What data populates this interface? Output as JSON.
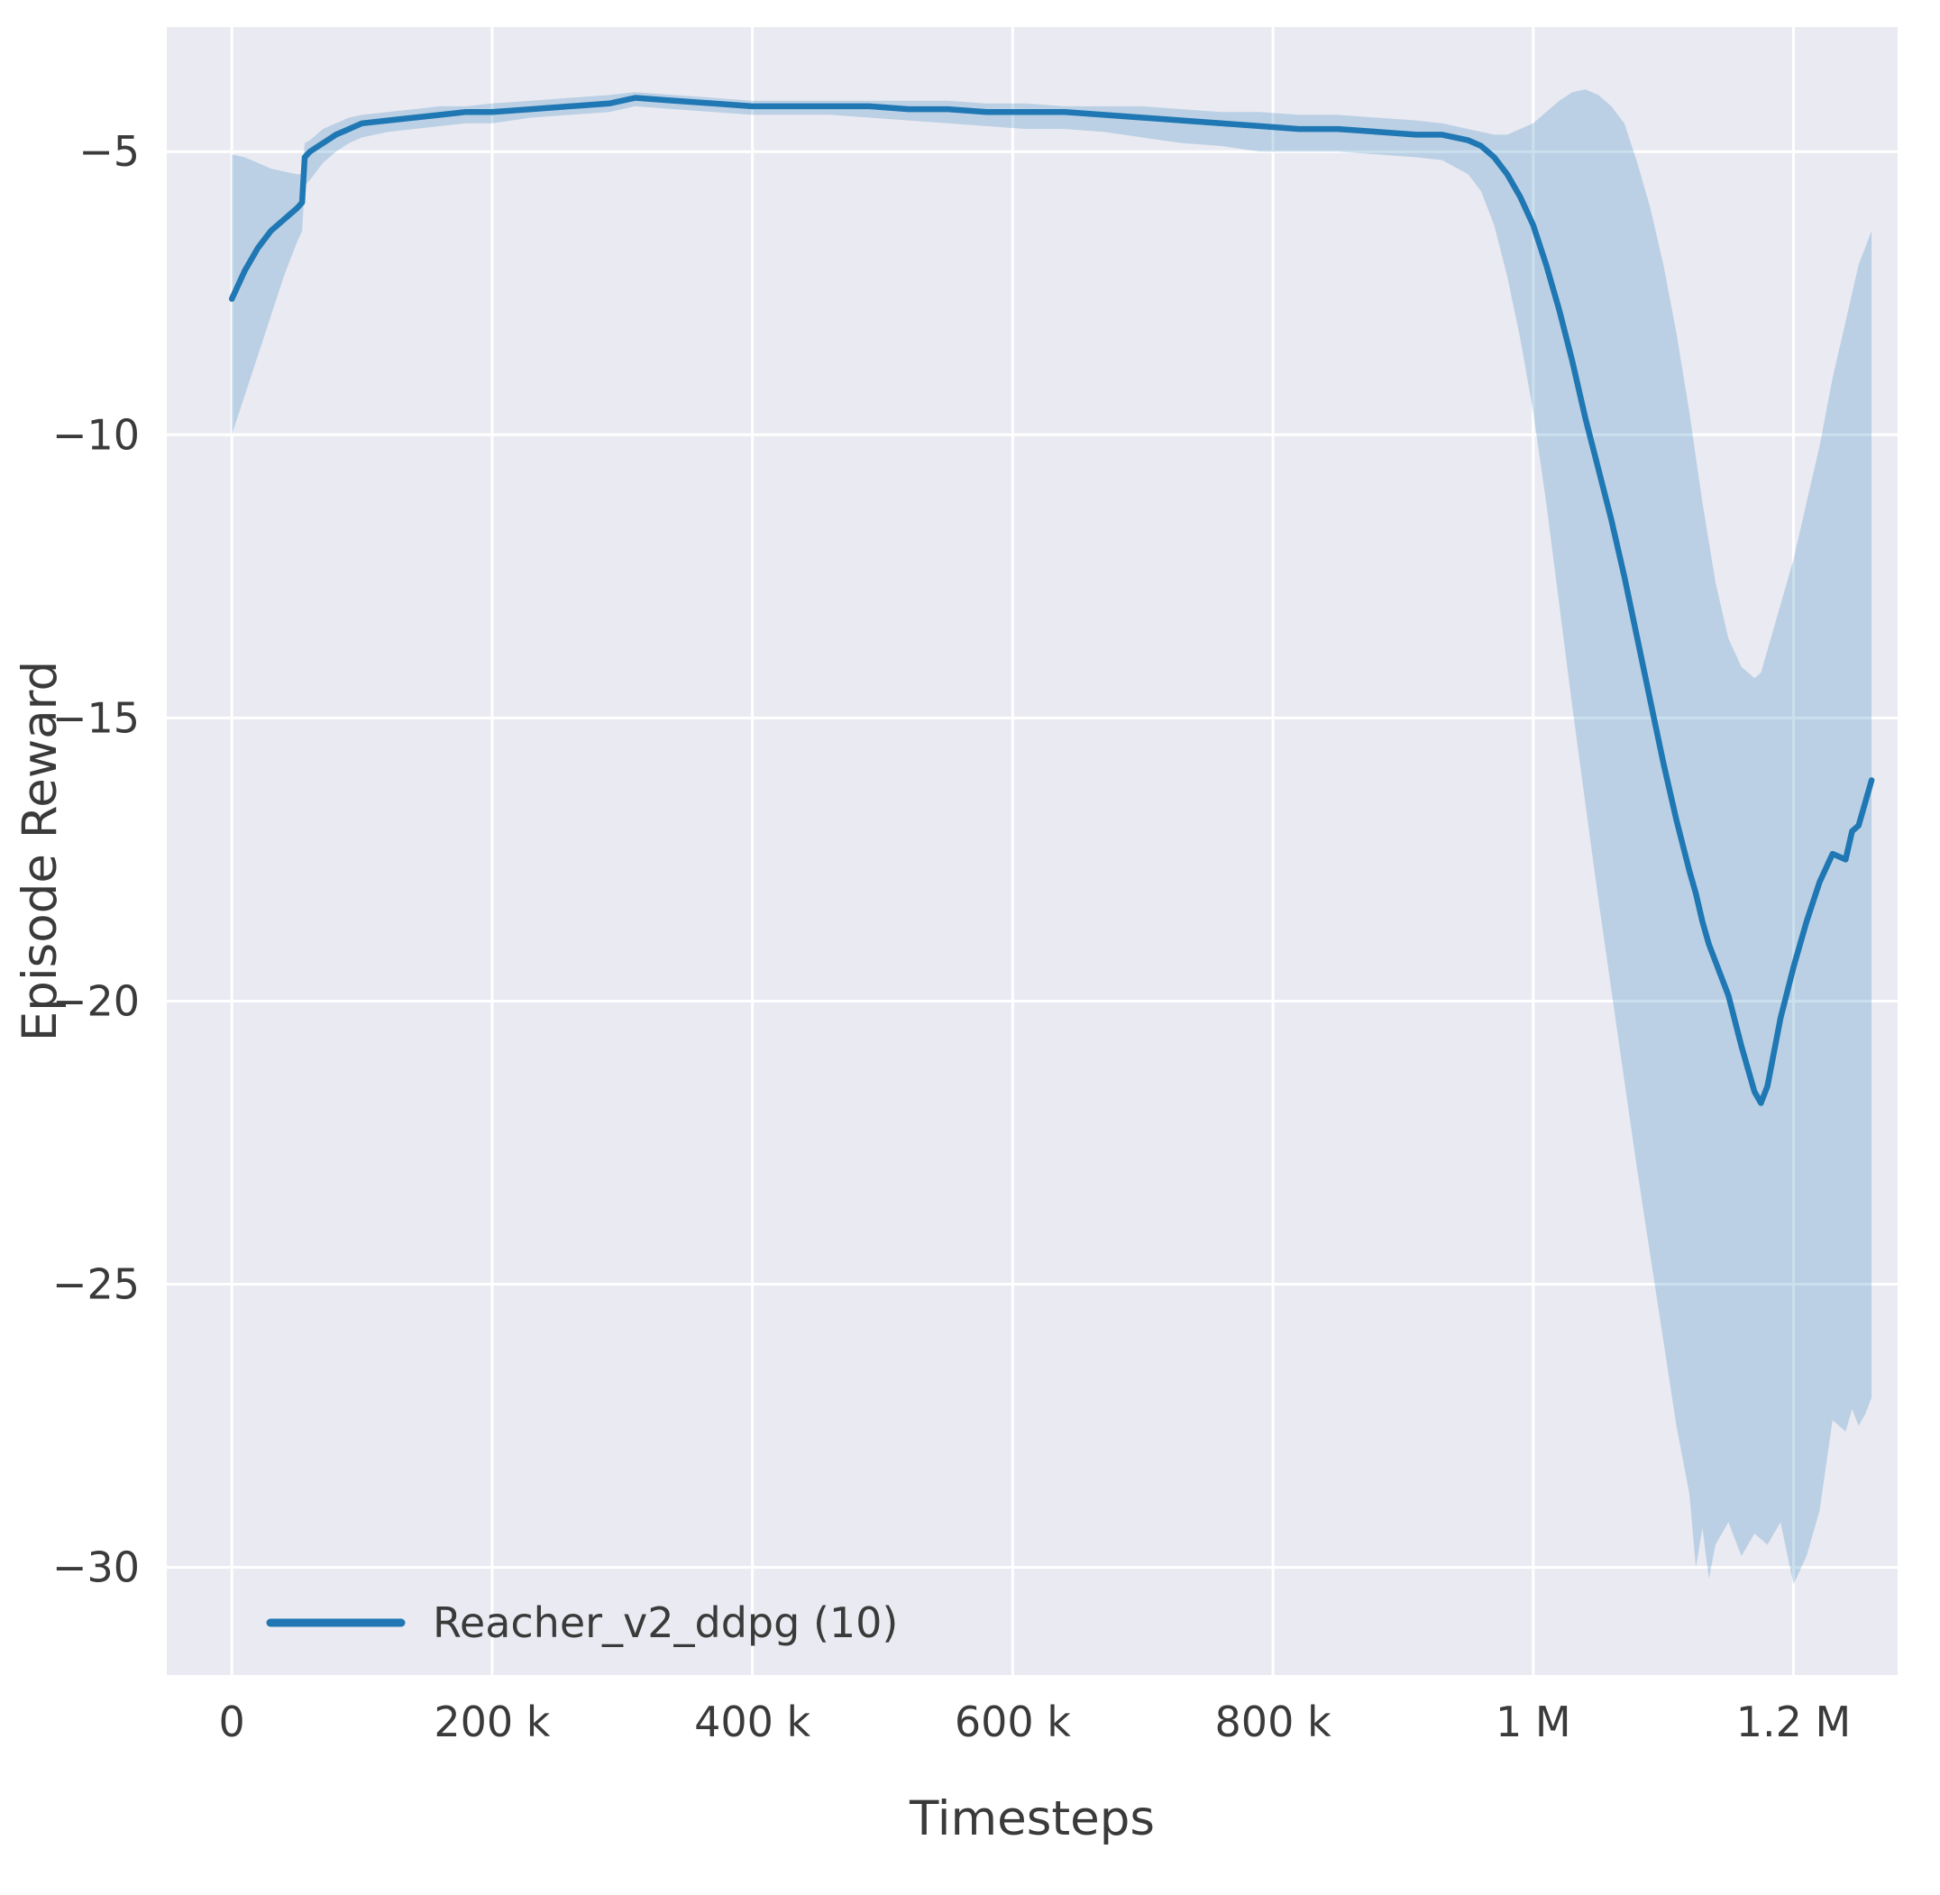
{
  "figure": {
    "xlabel": "Timesteps",
    "ylabel": "Episode Reward",
    "legend": {
      "label": "Reacher_v2_ddpg (10)"
    }
  },
  "chart_data": {
    "type": "line",
    "title": "",
    "xlabel": "Timesteps",
    "ylabel": "Episode Reward",
    "xlim": [
      -50000,
      1280000
    ],
    "ylim": [
      -31.9,
      -2.8
    ],
    "grid": true,
    "legend_position": "lower left",
    "background": "#eaeaf2",
    "grid_color": "#ffffff",
    "line_color": "#1f77b4",
    "band_color": "#1f77b4",
    "band_opacity": 0.23,
    "xticks": [
      {
        "value": 0,
        "label": "0"
      },
      {
        "value": 200000,
        "label": "200 k"
      },
      {
        "value": 400000,
        "label": "400 k"
      },
      {
        "value": 600000,
        "label": "600 k"
      },
      {
        "value": 800000,
        "label": "800 k"
      },
      {
        "value": 1000000,
        "label": "1 M"
      },
      {
        "value": 1200000,
        "label": "1.2 M"
      }
    ],
    "yticks": [
      {
        "value": -5,
        "label": "−5"
      },
      {
        "value": -10,
        "label": "−10"
      },
      {
        "value": -15,
        "label": "−15"
      },
      {
        "value": -20,
        "label": "−20"
      },
      {
        "value": -25,
        "label": "−25"
      },
      {
        "value": -30,
        "label": "−30"
      }
    ],
    "series": [
      {
        "name": "Reacher_v2_ddpg (10)",
        "x": [
          0,
          10000,
          20000,
          30000,
          40000,
          50000,
          54000,
          56000,
          60000,
          70000,
          80000,
          90000,
          100000,
          120000,
          140000,
          160000,
          180000,
          200000,
          230000,
          260000,
          290000,
          310000,
          340000,
          370000,
          400000,
          430000,
          460000,
          490000,
          520000,
          550000,
          580000,
          610000,
          640000,
          670000,
          700000,
          730000,
          760000,
          790000,
          820000,
          850000,
          880000,
          910000,
          930000,
          950000,
          960000,
          970000,
          980000,
          990000,
          1000000,
          1010000,
          1020000,
          1030000,
          1040000,
          1050000,
          1060000,
          1070000,
          1080000,
          1090000,
          1100000,
          1110000,
          1120000,
          1125000,
          1130000,
          1135000,
          1140000,
          1150000,
          1160000,
          1170000,
          1175000,
          1180000,
          1190000,
          1200000,
          1210000,
          1220000,
          1230000,
          1240000,
          1245000,
          1250000,
          1255000,
          1260000
        ],
        "mean": [
          -7.6,
          -7.1,
          -6.7,
          -6.4,
          -6.2,
          -6.0,
          -5.9,
          -5.1,
          -5.0,
          -4.85,
          -4.7,
          -4.6,
          -4.5,
          -4.45,
          -4.4,
          -4.35,
          -4.3,
          -4.3,
          -4.25,
          -4.2,
          -4.15,
          -4.05,
          -4.1,
          -4.15,
          -4.2,
          -4.2,
          -4.2,
          -4.2,
          -4.25,
          -4.25,
          -4.3,
          -4.3,
          -4.3,
          -4.35,
          -4.4,
          -4.45,
          -4.5,
          -4.55,
          -4.6,
          -4.6,
          -4.65,
          -4.7,
          -4.7,
          -4.8,
          -4.9,
          -5.1,
          -5.4,
          -5.8,
          -6.3,
          -7.0,
          -7.8,
          -8.7,
          -9.7,
          -10.6,
          -11.5,
          -12.5,
          -13.6,
          -14.7,
          -15.8,
          -16.8,
          -17.7,
          -18.1,
          -18.6,
          -19.0,
          -19.3,
          -19.9,
          -20.8,
          -21.6,
          -21.8,
          -21.5,
          -20.3,
          -19.4,
          -18.6,
          -17.9,
          -17.4,
          -17.5,
          -17.0,
          -16.9,
          -16.5,
          -16.1
        ],
        "lower": [
          -10.0,
          -9.3,
          -8.6,
          -7.9,
          -7.2,
          -6.6,
          -6.4,
          -5.6,
          -5.5,
          -5.2,
          -5.0,
          -4.85,
          -4.75,
          -4.65,
          -4.6,
          -4.55,
          -4.5,
          -4.5,
          -4.4,
          -4.35,
          -4.3,
          -4.2,
          -4.25,
          -4.3,
          -4.35,
          -4.35,
          -4.35,
          -4.4,
          -4.45,
          -4.5,
          -4.55,
          -4.6,
          -4.6,
          -4.65,
          -4.75,
          -4.85,
          -4.9,
          -5.0,
          -5.0,
          -5.0,
          -5.05,
          -5.1,
          -5.15,
          -5.4,
          -5.7,
          -6.3,
          -7.2,
          -8.3,
          -9.6,
          -11.2,
          -13.0,
          -14.8,
          -16.5,
          -18.2,
          -19.8,
          -21.4,
          -23.0,
          -24.5,
          -26.0,
          -27.5,
          -28.7,
          -30.0,
          -29.3,
          -30.2,
          -29.6,
          -29.2,
          -29.8,
          -29.4,
          -29.5,
          -29.6,
          -29.2,
          -30.3,
          -29.8,
          -29.0,
          -27.4,
          -27.6,
          -27.2,
          -27.5,
          -27.3,
          -27.0
        ],
        "upper": [
          -5.05,
          -5.1,
          -5.2,
          -5.3,
          -5.35,
          -5.4,
          -5.4,
          -4.85,
          -4.8,
          -4.6,
          -4.5,
          -4.4,
          -4.35,
          -4.3,
          -4.25,
          -4.2,
          -4.2,
          -4.15,
          -4.1,
          -4.05,
          -4.0,
          -3.95,
          -4.0,
          -4.05,
          -4.1,
          -4.1,
          -4.1,
          -4.1,
          -4.1,
          -4.1,
          -4.15,
          -4.15,
          -4.2,
          -4.2,
          -4.2,
          -4.25,
          -4.3,
          -4.3,
          -4.35,
          -4.35,
          -4.4,
          -4.45,
          -4.5,
          -4.6,
          -4.65,
          -4.7,
          -4.7,
          -4.6,
          -4.5,
          -4.3,
          -4.1,
          -3.95,
          -3.9,
          -4.0,
          -4.2,
          -4.5,
          -5.2,
          -6.0,
          -7.0,
          -8.2,
          -9.6,
          -10.4,
          -11.2,
          -11.9,
          -12.6,
          -13.6,
          -14.1,
          -14.3,
          -14.2,
          -13.8,
          -13.0,
          -12.2,
          -11.2,
          -10.2,
          -9.0,
          -8.0,
          -7.5,
          -7.0,
          -6.7,
          -6.4
        ]
      }
    ]
  }
}
